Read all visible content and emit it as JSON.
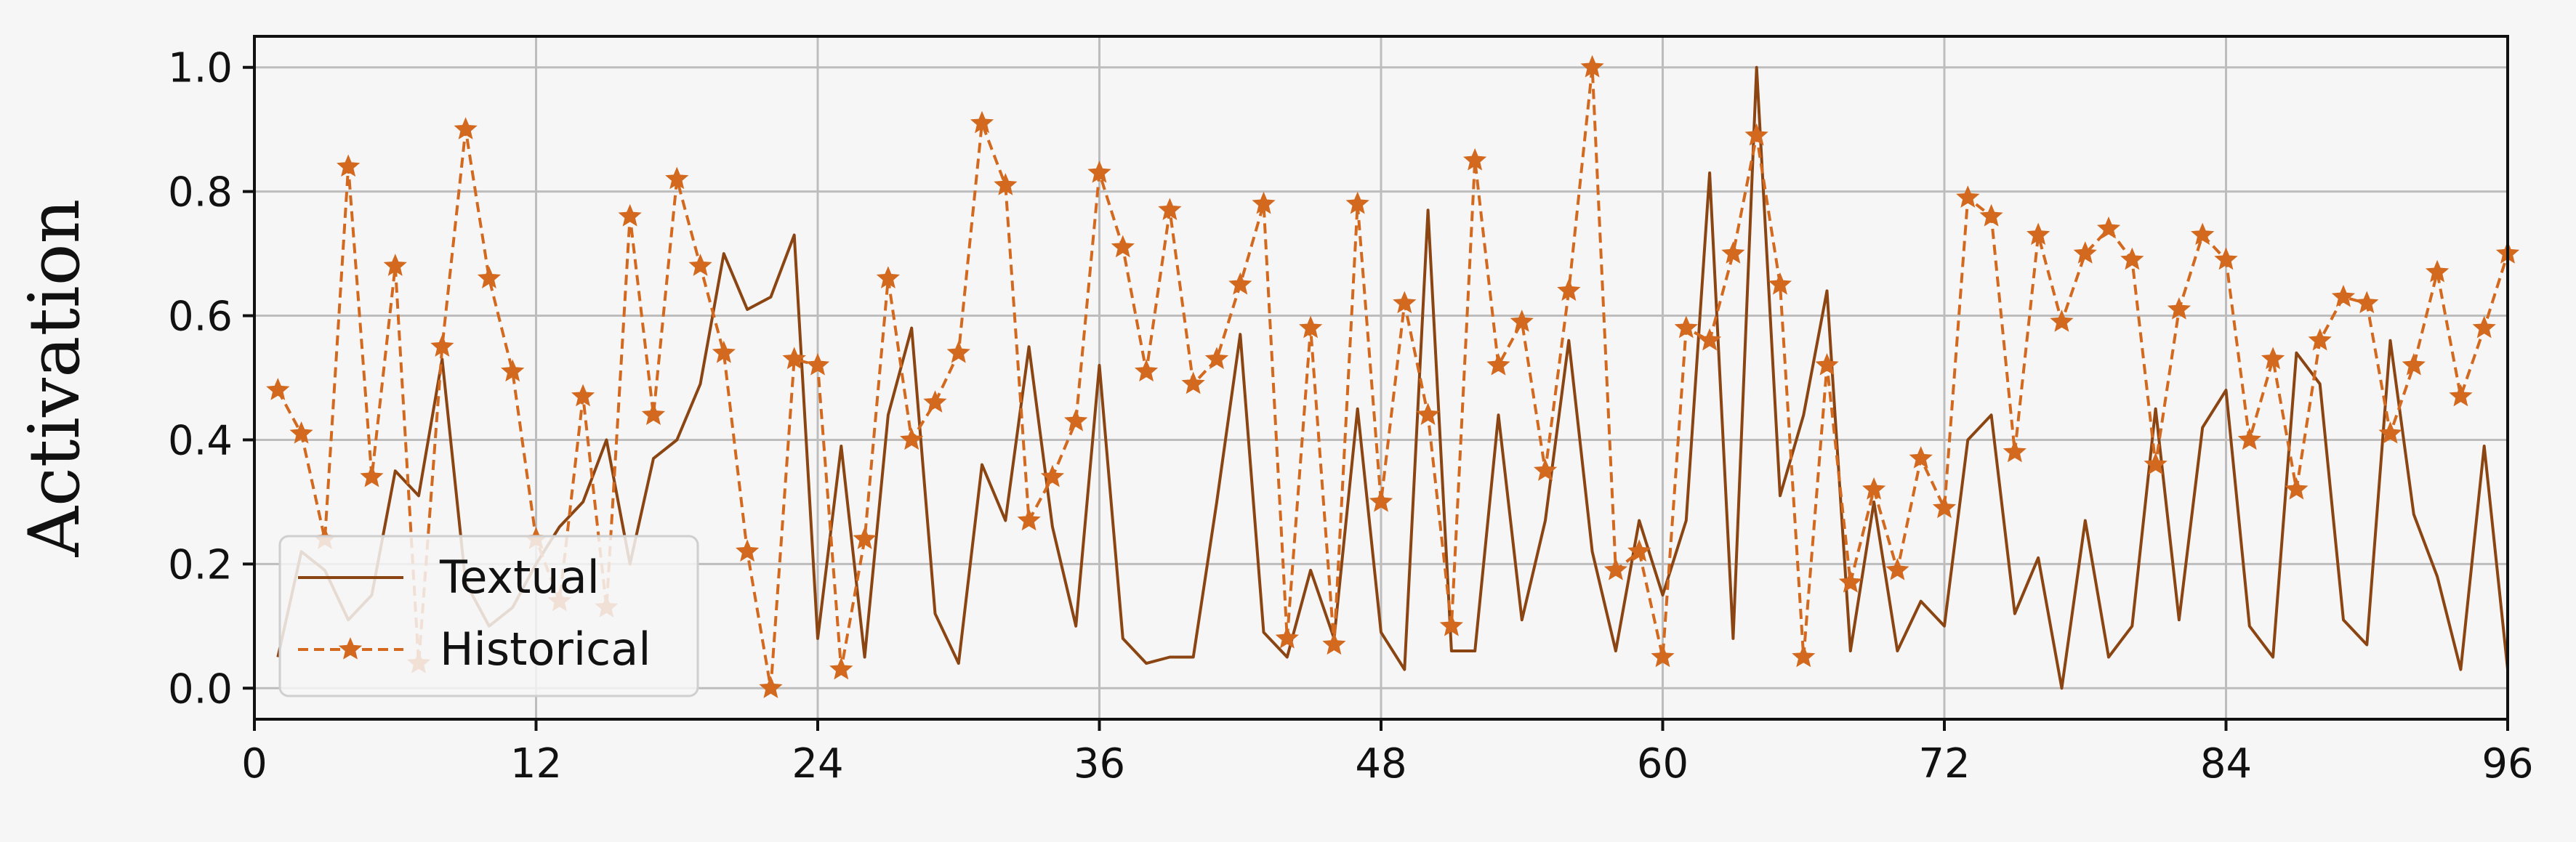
{
  "chart_data": {
    "type": "line",
    "title": "",
    "xlabel": "",
    "ylabel": "Activation",
    "xlim": [
      0,
      96
    ],
    "ylim": [
      -0.05,
      1.05
    ],
    "xticks": [
      "0",
      "12",
      "24",
      "36",
      "48",
      "60",
      "72",
      "84",
      "96"
    ],
    "yticks": [
      "0.0",
      "0.2",
      "0.4",
      "0.6",
      "0.8",
      "1.0"
    ],
    "grid": true,
    "legend_position": "lower-left",
    "x": [
      1,
      2,
      3,
      4,
      5,
      6,
      7,
      8,
      9,
      10,
      11,
      12,
      13,
      14,
      15,
      16,
      17,
      18,
      19,
      20,
      21,
      22,
      23,
      24,
      25,
      26,
      27,
      28,
      29,
      30,
      31,
      32,
      33,
      34,
      35,
      36,
      37,
      38,
      39,
      40,
      41,
      42,
      43,
      44,
      45,
      46,
      47,
      48,
      49,
      50,
      51,
      52,
      53,
      54,
      55,
      56,
      57,
      58,
      59,
      60,
      61,
      62,
      63,
      64,
      65,
      66,
      67,
      68,
      69,
      70,
      71,
      72,
      73,
      74,
      75,
      76,
      77,
      78,
      79,
      80,
      81,
      82,
      83,
      84,
      85,
      86,
      87,
      88,
      89,
      90,
      91,
      92,
      93,
      94,
      95,
      96
    ],
    "series": [
      {
        "name": "Textual",
        "color": "#8b4513",
        "style": "solid",
        "values": [
          0.05,
          0.22,
          0.19,
          0.11,
          0.15,
          0.35,
          0.31,
          0.53,
          0.17,
          0.1,
          0.13,
          0.2,
          0.26,
          0.3,
          0.4,
          0.2,
          0.37,
          0.4,
          0.49,
          0.7,
          0.61,
          0.63,
          0.73,
          0.08,
          0.39,
          0.05,
          0.44,
          0.58,
          0.12,
          0.04,
          0.36,
          0.27,
          0.55,
          0.26,
          0.1,
          0.52,
          0.08,
          0.04,
          0.05,
          0.05,
          0.3,
          0.57,
          0.09,
          0.05,
          0.19,
          0.08,
          0.45,
          0.09,
          0.03,
          0.77,
          0.06,
          0.06,
          0.44,
          0.11,
          0.27,
          0.56,
          0.22,
          0.06,
          0.27,
          0.15,
          0.27,
          0.83,
          0.08,
          1.0,
          0.31,
          0.44,
          0.64,
          0.06,
          0.3,
          0.06,
          0.14,
          0.1,
          0.4,
          0.44,
          0.12,
          0.21,
          0.0,
          0.27,
          0.05,
          0.1,
          0.45,
          0.11,
          0.42,
          0.48,
          0.1,
          0.05,
          0.54,
          0.49,
          0.11,
          0.07,
          0.56,
          0.28,
          0.18,
          0.03,
          0.39,
          0.03
        ]
      },
      {
        "name": "Historical",
        "color": "#d2691e",
        "style": "dashed",
        "marker": "star",
        "values": [
          0.48,
          0.41,
          0.24,
          0.84,
          0.34,
          0.68,
          0.04,
          0.55,
          0.9,
          0.66,
          0.51,
          0.24,
          0.14,
          0.47,
          0.13,
          0.76,
          0.44,
          0.82,
          0.68,
          0.54,
          0.22,
          0.0,
          0.53,
          0.52,
          0.03,
          0.24,
          0.66,
          0.4,
          0.46,
          0.54,
          0.91,
          0.81,
          0.27,
          0.34,
          0.43,
          0.83,
          0.71,
          0.51,
          0.77,
          0.49,
          0.53,
          0.65,
          0.78,
          0.08,
          0.58,
          0.07,
          0.78,
          0.3,
          0.62,
          0.44,
          0.1,
          0.85,
          0.52,
          0.59,
          0.35,
          0.64,
          1.0,
          0.19,
          0.22,
          0.05,
          0.58,
          0.56,
          0.7,
          0.89,
          0.65,
          0.05,
          0.52,
          0.17,
          0.32,
          0.19,
          0.37,
          0.29,
          0.79,
          0.76,
          0.38,
          0.73,
          0.59,
          0.7,
          0.74,
          0.69,
          0.36,
          0.61,
          0.73,
          0.69,
          0.4,
          0.53,
          0.32,
          0.56,
          0.63,
          0.62,
          0.41,
          0.52,
          0.67,
          0.47,
          0.58,
          0.7
        ]
      }
    ]
  }
}
